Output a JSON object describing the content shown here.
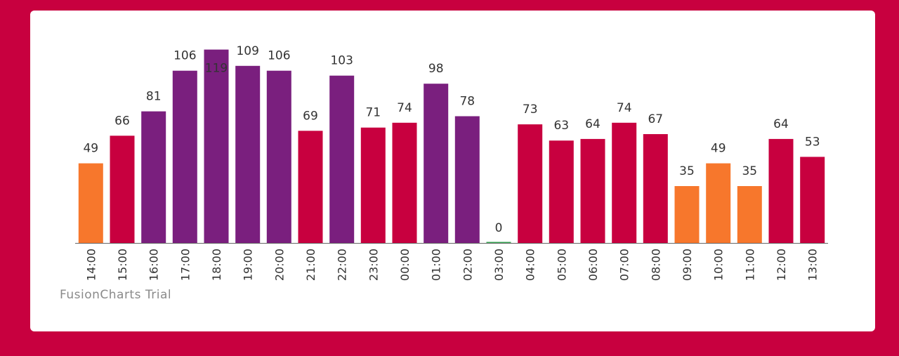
{
  "watermark": "FusionCharts Trial",
  "colors": {
    "background": "#c8003f",
    "card": "#ffffff",
    "low": "#f7772c",
    "mid": "#c8003f",
    "high": "#7a1f7e",
    "zero": "#3aa655",
    "axis": "#666666"
  },
  "chart_data": {
    "type": "bar",
    "title": "",
    "xlabel": "",
    "ylabel": "",
    "ylim": [
      0,
      120
    ],
    "grid": false,
    "legend": "none",
    "categories": [
      "14:00",
      "15:00",
      "16:00",
      "17:00",
      "18:00",
      "19:00",
      "20:00",
      "21:00",
      "22:00",
      "23:00",
      "00:00",
      "01:00",
      "02:00",
      "03:00",
      "04:00",
      "05:00",
      "06:00",
      "07:00",
      "08:00",
      "09:00",
      "10:00",
      "11:00",
      "12:00",
      "13:00"
    ],
    "values": [
      49,
      66,
      81,
      106,
      119,
      109,
      106,
      69,
      103,
      71,
      74,
      98,
      78,
      0,
      73,
      63,
      64,
      74,
      67,
      35,
      49,
      35,
      64,
      53
    ],
    "bar_colors": [
      "#f7772c",
      "#c8003f",
      "#7a1f7e",
      "#7a1f7e",
      "#7a1f7e",
      "#7a1f7e",
      "#7a1f7e",
      "#c8003f",
      "#7a1f7e",
      "#c8003f",
      "#c8003f",
      "#7a1f7e",
      "#7a1f7e",
      "#3aa655",
      "#c8003f",
      "#c8003f",
      "#c8003f",
      "#c8003f",
      "#c8003f",
      "#f7772c",
      "#f7772c",
      "#f7772c",
      "#c8003f",
      "#c8003f"
    ]
  }
}
